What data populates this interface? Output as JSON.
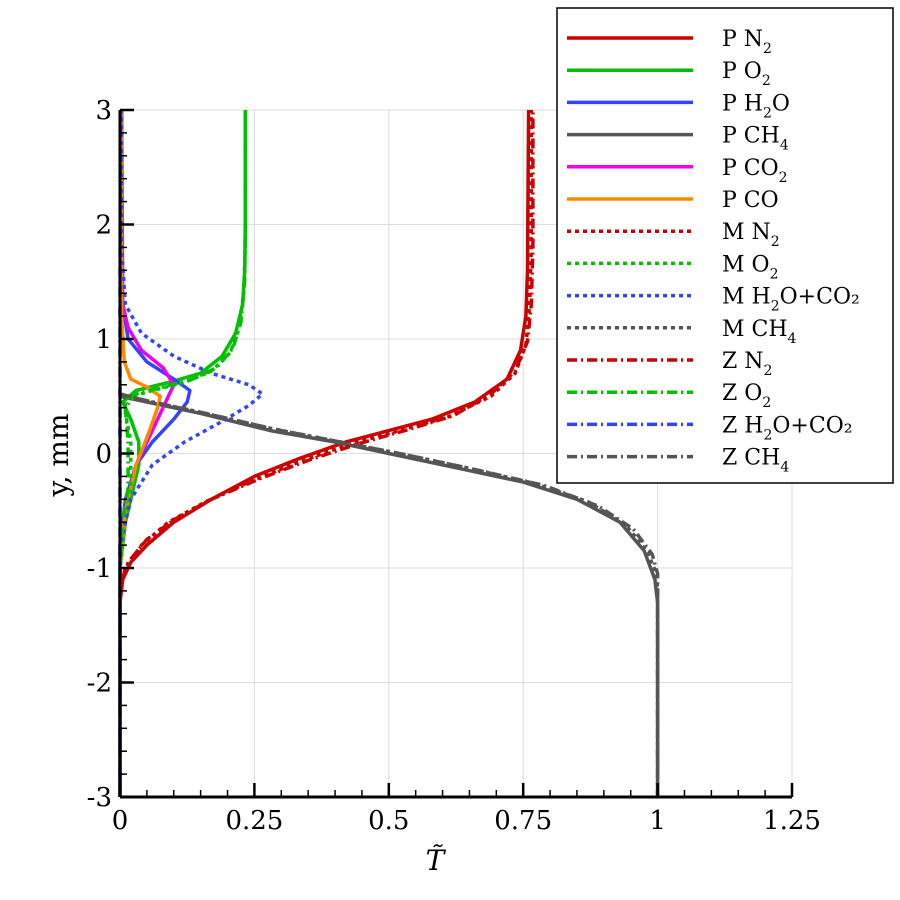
{
  "chart_data": {
    "type": "line",
    "xlabel": "T̃",
    "ylabel": "y, mm",
    "xlim": [
      0,
      1.25
    ],
    "ylim": [
      -3,
      3
    ],
    "xticks": [
      0,
      0.25,
      0.5,
      0.75,
      1,
      1.25
    ],
    "xtick_labels": [
      "0",
      "0.25",
      "0.5",
      "0.75",
      "1",
      "1.25"
    ],
    "yticks": [
      -3,
      -2,
      -1,
      0,
      1,
      2,
      3
    ],
    "ytick_labels": [
      "-3",
      "-2",
      "-1",
      "0",
      "1",
      "2",
      "3"
    ],
    "grid": true,
    "legend_position": "top-right",
    "series": [
      {
        "name": "P N2",
        "label_main": "P N",
        "label_sub": "2",
        "label_tail": "",
        "color": "#cc0000",
        "dash": "solid",
        "points": [
          [
            0.0,
            -3
          ],
          [
            0.0,
            -1.3
          ],
          [
            0.005,
            -1.1
          ],
          [
            0.02,
            -0.95
          ],
          [
            0.05,
            -0.8
          ],
          [
            0.1,
            -0.6
          ],
          [
            0.17,
            -0.4
          ],
          [
            0.25,
            -0.2
          ],
          [
            0.33,
            -0.05
          ],
          [
            0.42,
            0.1
          ],
          [
            0.5,
            0.2
          ],
          [
            0.58,
            0.3
          ],
          [
            0.66,
            0.45
          ],
          [
            0.72,
            0.65
          ],
          [
            0.745,
            0.9
          ],
          [
            0.755,
            1.2
          ],
          [
            0.758,
            1.6
          ],
          [
            0.76,
            3
          ]
        ]
      },
      {
        "name": "P O2",
        "label_main": "P O",
        "label_sub": "2",
        "label_tail": "",
        "color": "#00c000",
        "dash": "solid",
        "points": [
          [
            0.0,
            -3
          ],
          [
            0.0,
            -1.0
          ],
          [
            0.01,
            -0.6
          ],
          [
            0.025,
            -0.3
          ],
          [
            0.035,
            -0.1
          ],
          [
            0.035,
            0.1
          ],
          [
            0.02,
            0.3
          ],
          [
            0.005,
            0.45
          ],
          [
            0.03,
            0.55
          ],
          [
            0.09,
            0.62
          ],
          [
            0.15,
            0.7
          ],
          [
            0.19,
            0.85
          ],
          [
            0.215,
            1.05
          ],
          [
            0.228,
            1.3
          ],
          [
            0.232,
            1.6
          ],
          [
            0.233,
            2.0
          ],
          [
            0.233,
            3
          ]
        ]
      },
      {
        "name": "P H2O",
        "label_main": "P H",
        "label_sub": "2",
        "label_tail": "O",
        "color": "#3344ff",
        "dash": "solid",
        "points": [
          [
            0.0,
            -3
          ],
          [
            0.0,
            -0.8
          ],
          [
            0.01,
            -0.4
          ],
          [
            0.03,
            -0.1
          ],
          [
            0.06,
            0.1
          ],
          [
            0.1,
            0.3
          ],
          [
            0.125,
            0.45
          ],
          [
            0.13,
            0.55
          ],
          [
            0.1,
            0.65
          ],
          [
            0.05,
            0.8
          ],
          [
            0.015,
            1.0
          ],
          [
            0.005,
            1.3
          ],
          [
            0.003,
            2.0
          ],
          [
            0.003,
            3
          ]
        ]
      },
      {
        "name": "P CH4",
        "label_main": "P CH",
        "label_sub": "4",
        "label_tail": "",
        "color": "#555555",
        "dash": "solid",
        "points": [
          [
            0.0,
            0.5
          ],
          [
            0.05,
            0.45
          ],
          [
            0.15,
            0.35
          ],
          [
            0.28,
            0.2
          ],
          [
            0.4,
            0.1
          ],
          [
            0.5,
            0.0
          ],
          [
            0.62,
            -0.12
          ],
          [
            0.75,
            -0.25
          ],
          [
            0.85,
            -0.4
          ],
          [
            0.93,
            -0.6
          ],
          [
            0.975,
            -0.85
          ],
          [
            0.995,
            -1.1
          ],
          [
            1.0,
            -1.3
          ],
          [
            1.0,
            -3
          ]
        ]
      },
      {
        "name": "P CO2",
        "label_main": "P CO",
        "label_sub": "2",
        "label_tail": "",
        "color": "#ee00ee",
        "dash": "solid",
        "points": [
          [
            0.0,
            -3
          ],
          [
            0.0,
            -1.0
          ],
          [
            0.01,
            -0.5
          ],
          [
            0.03,
            -0.1
          ],
          [
            0.06,
            0.2
          ],
          [
            0.085,
            0.45
          ],
          [
            0.1,
            0.6
          ],
          [
            0.08,
            0.75
          ],
          [
            0.04,
            0.9
          ],
          [
            0.015,
            1.1
          ],
          [
            0.005,
            1.3
          ],
          [
            0.003,
            3
          ]
        ]
      },
      {
        "name": "P CO",
        "label_main": "P CO",
        "label_sub": "",
        "label_tail": "",
        "color": "#ff8800",
        "dash": "solid",
        "points": [
          [
            0.0,
            -3
          ],
          [
            0.0,
            -1.0
          ],
          [
            0.01,
            -0.5
          ],
          [
            0.03,
            -0.1
          ],
          [
            0.055,
            0.2
          ],
          [
            0.07,
            0.4
          ],
          [
            0.075,
            0.5
          ],
          [
            0.05,
            0.58
          ],
          [
            0.02,
            0.65
          ],
          [
            0.008,
            0.8
          ],
          [
            0.003,
            1.2
          ],
          [
            0.002,
            3
          ]
        ]
      },
      {
        "name": "M N2",
        "label_main": "M N",
        "label_sub": "2",
        "label_tail": "",
        "color": "#cc0000",
        "dash": "dot",
        "points": [
          [
            0.0,
            -3
          ],
          [
            0.0,
            -1.2
          ],
          [
            0.01,
            -1.0
          ],
          [
            0.04,
            -0.8
          ],
          [
            0.09,
            -0.6
          ],
          [
            0.16,
            -0.42
          ],
          [
            0.24,
            -0.25
          ],
          [
            0.33,
            -0.08
          ],
          [
            0.42,
            0.07
          ],
          [
            0.52,
            0.2
          ],
          [
            0.61,
            0.32
          ],
          [
            0.69,
            0.5
          ],
          [
            0.735,
            0.7
          ],
          [
            0.755,
            0.95
          ],
          [
            0.762,
            1.3
          ],
          [
            0.765,
            1.8
          ],
          [
            0.765,
            3
          ]
        ]
      },
      {
        "name": "M O2",
        "label_main": "M O",
        "label_sub": "2",
        "label_tail": "",
        "color": "#00c000",
        "dash": "dot",
        "points": [
          [
            0.0,
            -3
          ],
          [
            0.0,
            -1.0
          ],
          [
            0.01,
            -0.6
          ],
          [
            0.02,
            -0.3
          ],
          [
            0.02,
            0.1
          ],
          [
            0.01,
            0.35
          ],
          [
            0.01,
            0.48
          ],
          [
            0.06,
            0.55
          ],
          [
            0.12,
            0.62
          ],
          [
            0.17,
            0.72
          ],
          [
            0.205,
            0.88
          ],
          [
            0.222,
            1.1
          ],
          [
            0.23,
            1.4
          ],
          [
            0.233,
            1.8
          ],
          [
            0.233,
            3
          ]
        ]
      },
      {
        "name": "M H2O+CO2",
        "label_main": "M H",
        "label_sub": "2",
        "label_tail": "O+CO₂",
        "color": "#3344ff",
        "dash": "dot",
        "points": [
          [
            0.0,
            -3
          ],
          [
            0.0,
            -0.8
          ],
          [
            0.02,
            -0.4
          ],
          [
            0.06,
            -0.1
          ],
          [
            0.12,
            0.1
          ],
          [
            0.19,
            0.28
          ],
          [
            0.24,
            0.42
          ],
          [
            0.265,
            0.52
          ],
          [
            0.24,
            0.6
          ],
          [
            0.17,
            0.7
          ],
          [
            0.1,
            0.85
          ],
          [
            0.04,
            1.05
          ],
          [
            0.01,
            1.3
          ],
          [
            0.003,
            1.8
          ],
          [
            0.003,
            3
          ]
        ]
      },
      {
        "name": "M CH4",
        "label_main": "M CH",
        "label_sub": "4",
        "label_tail": "",
        "color": "#555555",
        "dash": "dot",
        "points": [
          [
            0.0,
            0.52
          ],
          [
            0.05,
            0.46
          ],
          [
            0.15,
            0.36
          ],
          [
            0.28,
            0.22
          ],
          [
            0.4,
            0.11
          ],
          [
            0.52,
            0.0
          ],
          [
            0.64,
            -0.12
          ],
          [
            0.77,
            -0.26
          ],
          [
            0.87,
            -0.42
          ],
          [
            0.94,
            -0.62
          ],
          [
            0.98,
            -0.85
          ],
          [
            0.998,
            -1.05
          ],
          [
            1.0,
            -1.2
          ],
          [
            1.0,
            -3
          ]
        ]
      },
      {
        "name": "Z N2",
        "label_main": "Z N",
        "label_sub": "2",
        "label_tail": "",
        "color": "#cc0000",
        "dash": "dashdot",
        "points": [
          [
            0.0,
            -3
          ],
          [
            0.0,
            -1.15
          ],
          [
            0.015,
            -0.95
          ],
          [
            0.05,
            -0.75
          ],
          [
            0.1,
            -0.58
          ],
          [
            0.17,
            -0.4
          ],
          [
            0.26,
            -0.22
          ],
          [
            0.35,
            -0.06
          ],
          [
            0.44,
            0.08
          ],
          [
            0.53,
            0.2
          ],
          [
            0.62,
            0.33
          ],
          [
            0.69,
            0.52
          ],
          [
            0.735,
            0.72
          ],
          [
            0.758,
            0.98
          ],
          [
            0.765,
            1.3
          ],
          [
            0.768,
            1.8
          ],
          [
            0.768,
            3
          ]
        ]
      },
      {
        "name": "Z O2",
        "label_main": "Z O",
        "label_sub": "2",
        "label_tail": "",
        "color": "#00c000",
        "dash": "dashdot",
        "points": [
          [
            0.0,
            -3
          ],
          [
            0.0,
            -1.0
          ],
          [
            0.005,
            -0.6
          ],
          [
            0.015,
            -0.3
          ],
          [
            0.015,
            0.1
          ],
          [
            0.01,
            0.4
          ],
          [
            0.03,
            0.52
          ],
          [
            0.08,
            0.58
          ],
          [
            0.13,
            0.64
          ],
          [
            0.18,
            0.75
          ],
          [
            0.21,
            0.92
          ],
          [
            0.225,
            1.15
          ],
          [
            0.232,
            1.5
          ],
          [
            0.233,
            2.0
          ],
          [
            0.233,
            3
          ]
        ]
      },
      {
        "name": "Z H2O+CO2",
        "label_main": "Z H",
        "label_sub": "2",
        "label_tail": "O+CO₂",
        "color": "#3344ff",
        "dash": "dashdot",
        "points": [
          [
            0.0,
            -3
          ],
          [
            0.0,
            1.4
          ],
          [
            0.001,
            3
          ]
        ]
      },
      {
        "name": "Z CH4",
        "label_main": "Z CH",
        "label_sub": "4",
        "label_tail": "",
        "color": "#555555",
        "dash": "dashdot",
        "points": [
          [
            0.0,
            0.52
          ],
          [
            0.05,
            0.46
          ],
          [
            0.16,
            0.35
          ],
          [
            0.29,
            0.21
          ],
          [
            0.41,
            0.1
          ],
          [
            0.53,
            -0.01
          ],
          [
            0.66,
            -0.14
          ],
          [
            0.79,
            -0.28
          ],
          [
            0.89,
            -0.46
          ],
          [
            0.955,
            -0.66
          ],
          [
            0.99,
            -0.88
          ],
          [
            1.0,
            -1.05
          ],
          [
            1.0,
            -3
          ]
        ]
      }
    ]
  }
}
